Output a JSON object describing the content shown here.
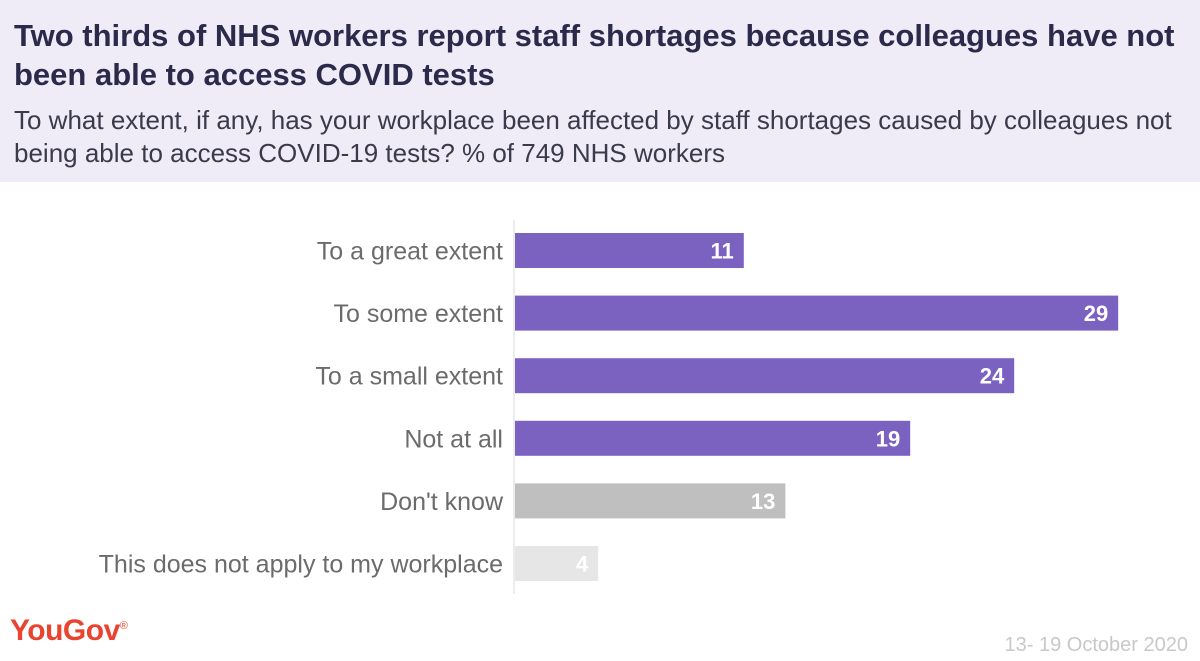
{
  "header": {
    "title": "Two thirds of NHS workers report staff shortages because colleagues have not been able to access COVID tests",
    "subtitle": "To what extent, if any, has your workplace been affected by staff shortages caused by colleagues not being able to access COVID-19 tests? % of 749 NHS workers"
  },
  "footer": {
    "brand": "YouGov",
    "date": "13- 19 October 2020"
  },
  "chart_data": {
    "type": "bar",
    "orientation": "horizontal",
    "title": "Two thirds of NHS workers report staff shortages because colleagues have not been able to access COVID tests",
    "subtitle": "To what extent, if any, has your workplace been affected by staff shortages caused by colleagues not being able to access COVID-19 tests? % of 749 NHS workers",
    "categories": [
      "To a great extent",
      "To some extent",
      "To a small extent",
      "Not at all",
      "Don't know",
      "This does not apply to my workplace"
    ],
    "values": [
      11,
      29,
      24,
      19,
      13,
      4
    ],
    "bar_colors": [
      "#7b62c1",
      "#7b62c1",
      "#7b62c1",
      "#7b62c1",
      "#bfbfbf",
      "#e6e6e6"
    ],
    "xlim": [
      0,
      30
    ],
    "grid": false,
    "legend": "none"
  }
}
